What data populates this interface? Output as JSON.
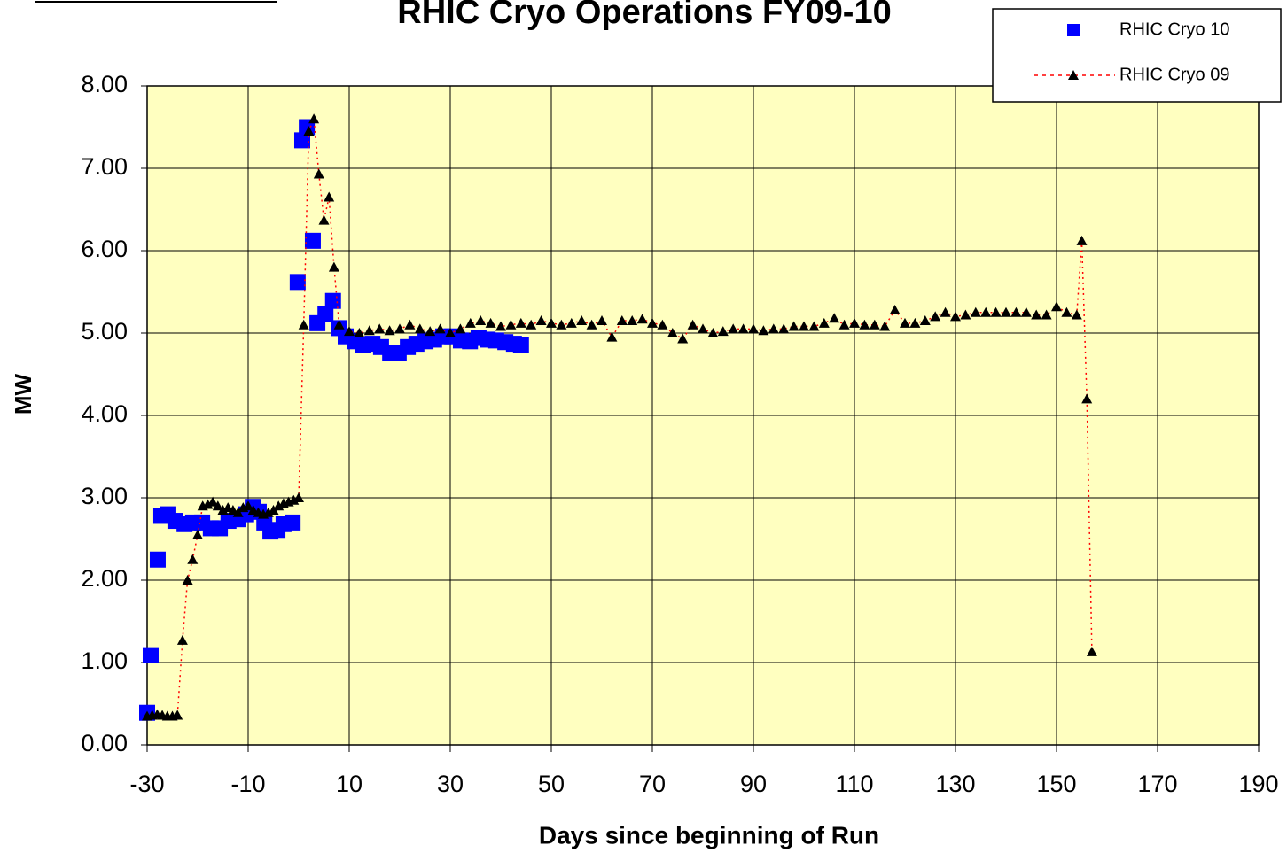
{
  "chart_data": {
    "type": "scatter",
    "title": "RHIC Cryo Operations FY09-10",
    "xlabel": "Days since beginning of Run",
    "ylabel": "MW",
    "xlim": [
      -30,
      190
    ],
    "ylim": [
      0,
      8
    ],
    "xticks": [
      -30,
      -10,
      10,
      30,
      50,
      70,
      90,
      110,
      130,
      150,
      170,
      190
    ],
    "yticks": [
      {
        "value": 0,
        "label": "0.00"
      },
      {
        "value": 1,
        "label": "1.00"
      },
      {
        "value": 2,
        "label": "2.00"
      },
      {
        "value": 3,
        "label": "3.00"
      },
      {
        "value": 4,
        "label": "4.00"
      },
      {
        "value": 5,
        "label": "5.00"
      },
      {
        "value": 6,
        "label": "6.00"
      },
      {
        "value": 7,
        "label": "7.00"
      },
      {
        "value": 8,
        "label": "8.00"
      }
    ],
    "grid": true,
    "legend": "top-right",
    "series": [
      {
        "name": "RHIC Cryo 10",
        "color": "#0000ff",
        "marker": "square",
        "x": [
          -30,
          -29.3,
          -27.9,
          -27.2,
          -25.8,
          -24.4,
          -22.6,
          -20.9,
          -19.1,
          -17.4,
          -15.6,
          -13.9,
          -12.1,
          -10.4,
          -9.1,
          -7.9,
          -6.8,
          -5.6,
          -4.2,
          -3,
          -1.2,
          -0.2,
          0.7,
          1.6,
          2.8,
          3.7,
          5.3,
          6.8,
          7.9,
          9.3,
          11.1,
          12.8,
          14.6,
          16.3,
          18.1,
          19.8,
          21.6,
          23.3,
          25.1,
          26.8,
          28.6,
          30.4,
          32.1,
          33.9,
          35.6,
          37.4,
          39.1,
          40.9,
          42.6,
          44
        ],
        "values": [
          0.39,
          1.09,
          2.25,
          2.78,
          2.8,
          2.72,
          2.68,
          2.7,
          2.7,
          2.63,
          2.63,
          2.72,
          2.74,
          2.8,
          2.89,
          2.83,
          2.7,
          2.59,
          2.61,
          2.68,
          2.7,
          5.62,
          7.34,
          7.5,
          6.12,
          5.12,
          5.23,
          5.39,
          5.06,
          4.96,
          4.9,
          4.85,
          4.87,
          4.83,
          4.76,
          4.76,
          4.83,
          4.87,
          4.9,
          4.92,
          4.96,
          4.96,
          4.91,
          4.9,
          4.94,
          4.92,
          4.91,
          4.89,
          4.87,
          4.85
        ]
      },
      {
        "name": "RHIC Cryo 09",
        "color": "#000000",
        "line_color": "#ff0000",
        "marker": "triangle",
        "x": [
          -30,
          -29,
          -28,
          -27,
          -26,
          -25,
          -24,
          -23,
          -22,
          -21,
          -20,
          -19,
          -18,
          -17,
          -16,
          -15,
          -14,
          -13,
          -12,
          -11,
          -10,
          -9,
          -8,
          -7,
          -6,
          -5,
          -4,
          -3,
          -2,
          -1,
          0,
          1,
          2,
          3,
          4,
          5,
          6,
          7,
          8,
          10,
          12,
          14,
          16,
          18,
          20,
          22,
          24,
          26,
          28,
          30,
          32,
          34,
          36,
          38,
          40,
          42,
          44,
          46,
          48,
          50,
          52,
          54,
          56,
          58,
          60,
          62,
          64,
          66,
          68,
          70,
          72,
          74,
          76,
          78,
          80,
          82,
          84,
          86,
          88,
          90,
          92,
          94,
          96,
          98,
          100,
          102,
          104,
          106,
          108,
          110,
          112,
          114,
          116,
          118,
          120,
          122,
          124,
          126,
          128,
          130,
          132,
          134,
          136,
          138,
          140,
          142,
          144,
          146,
          148,
          150,
          152,
          154,
          155,
          156,
          157
        ],
        "values": [
          0.35,
          0.36,
          0.37,
          0.36,
          0.35,
          0.35,
          0.36,
          1.27,
          2.0,
          2.25,
          2.55,
          2.9,
          2.92,
          2.95,
          2.9,
          2.85,
          2.88,
          2.85,
          2.82,
          2.88,
          2.9,
          2.85,
          2.82,
          2.8,
          2.82,
          2.85,
          2.9,
          2.93,
          2.95,
          2.97,
          3.0,
          5.1,
          7.45,
          7.6,
          6.93,
          6.37,
          6.65,
          5.8,
          5.1,
          5.02,
          5.0,
          5.03,
          5.05,
          5.03,
          5.05,
          5.1,
          5.05,
          5.02,
          5.05,
          5.0,
          5.05,
          5.12,
          5.15,
          5.12,
          5.08,
          5.1,
          5.12,
          5.1,
          5.15,
          5.12,
          5.1,
          5.12,
          5.15,
          5.1,
          5.15,
          4.95,
          5.15,
          5.15,
          5.17,
          5.12,
          5.1,
          5.0,
          4.93,
          5.1,
          5.05,
          5.0,
          5.02,
          5.05,
          5.05,
          5.05,
          5.03,
          5.05,
          5.05,
          5.08,
          5.08,
          5.08,
          5.12,
          5.18,
          5.1,
          5.12,
          5.1,
          5.1,
          5.08,
          5.28,
          5.12,
          5.12,
          5.15,
          5.2,
          5.25,
          5.2,
          5.22,
          5.25,
          5.25,
          5.25,
          5.25,
          5.25,
          5.25,
          5.22,
          5.22,
          5.32,
          5.25,
          5.22,
          6.12,
          4.2,
          1.13
        ]
      }
    ]
  }
}
